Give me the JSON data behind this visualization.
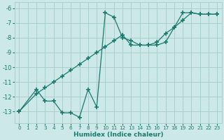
{
  "line1_x": [
    0,
    2,
    3,
    4,
    5,
    6,
    7,
    8,
    9,
    10,
    11,
    12,
    13,
    14,
    15,
    16,
    17,
    18,
    19,
    20,
    21,
    22,
    23
  ],
  "line1_y": [
    -13.0,
    -11.5,
    -12.3,
    -12.3,
    -13.1,
    -13.1,
    -13.4,
    -11.5,
    -12.7,
    -6.3,
    -6.6,
    -8.0,
    -8.2,
    -8.5,
    -8.5,
    -8.5,
    -8.3,
    -7.3,
    -6.3,
    -6.3,
    -6.4,
    -6.4,
    -6.4
  ],
  "line2_x": [
    0,
    2,
    3,
    4,
    5,
    6,
    7,
    8,
    9,
    10,
    11,
    12,
    13,
    14,
    15,
    16,
    17,
    18,
    19,
    20,
    21,
    22,
    23
  ],
  "line2_y": [
    -13.0,
    -11.8,
    -11.4,
    -11.0,
    -10.6,
    -10.2,
    -9.8,
    -9.4,
    -9.0,
    -8.6,
    -8.2,
    -7.8,
    -8.5,
    -8.5,
    -8.5,
    -8.3,
    -7.7,
    -7.3,
    -6.8,
    -6.3,
    -6.4,
    -6.4,
    -6.4
  ],
  "line_color": "#1a7a6e",
  "bg_color": "#cce8e8",
  "grid_color": "#aacfcf",
  "xlabel": "Humidex (Indice chaleur)",
  "xlim": [
    -0.5,
    23.5
  ],
  "ylim": [
    -13.8,
    -5.6
  ],
  "yticks": [
    -13,
    -12,
    -11,
    -10,
    -9,
    -8,
    -7,
    -6
  ],
  "xticks": [
    0,
    1,
    2,
    3,
    4,
    5,
    6,
    7,
    8,
    9,
    10,
    11,
    12,
    13,
    14,
    15,
    16,
    17,
    18,
    19,
    20,
    21,
    22,
    23
  ],
  "marker": "+",
  "markersize": 4,
  "linewidth": 0.9
}
